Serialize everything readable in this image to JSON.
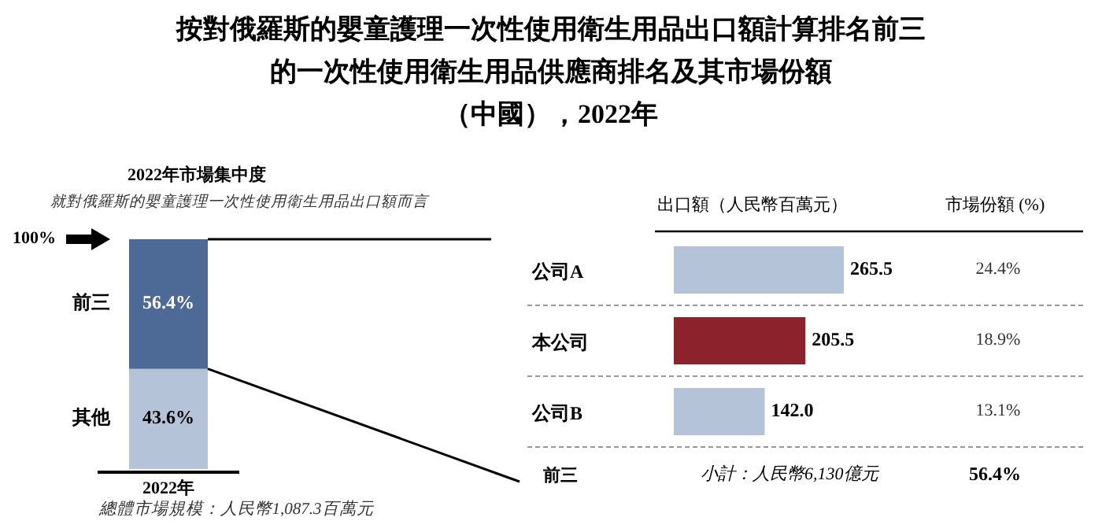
{
  "chart_data": [
    {
      "type": "bar",
      "stacked": true,
      "title": "按對俄羅斯的嬰童護理一次性使用衛生用品出口額計算排名前三的一次性使用衛生用品供應商排名及其市場份額（中國），2022年",
      "categories": [
        "2022年"
      ],
      "ylim": [
        0,
        100
      ],
      "yticks": [
        {
          "value": 100,
          "label": "100%"
        }
      ],
      "series": [
        {
          "name": "其他",
          "color": "#b4c3d8",
          "values": [
            43.6
          ],
          "value_labels": [
            "43.6%"
          ]
        },
        {
          "name": "前三",
          "color": "#4d6a96",
          "values": [
            56.4
          ],
          "value_labels": [
            "56.4%"
          ]
        }
      ],
      "annotations": [
        "2022年市場集中度",
        "就對俄羅斯的嬰童護理一次性使用衛生用品出口額而言",
        "總體市場規模：人民幣1,087.3百萬元"
      ]
    },
    {
      "type": "bar",
      "orientation": "horizontal",
      "categories": [
        "公司A",
        "本公司",
        "公司B"
      ],
      "values": [
        265.5,
        205.5,
        142.0
      ],
      "value_labels": [
        "265.5",
        "205.5",
        "142.0"
      ],
      "colors": [
        "#b4c3d8",
        "#8b222c",
        "#b4c3d8"
      ],
      "data_labels": true,
      "xlabel": "出口額（人民幣百萬元）",
      "grid": "y",
      "annotations": [
        "市場份額 (%)",
        "24.4%",
        "18.9%",
        "13.1%",
        "前三",
        "小計：人民幣6,130億元",
        "56.4%"
      ]
    }
  ]
}
